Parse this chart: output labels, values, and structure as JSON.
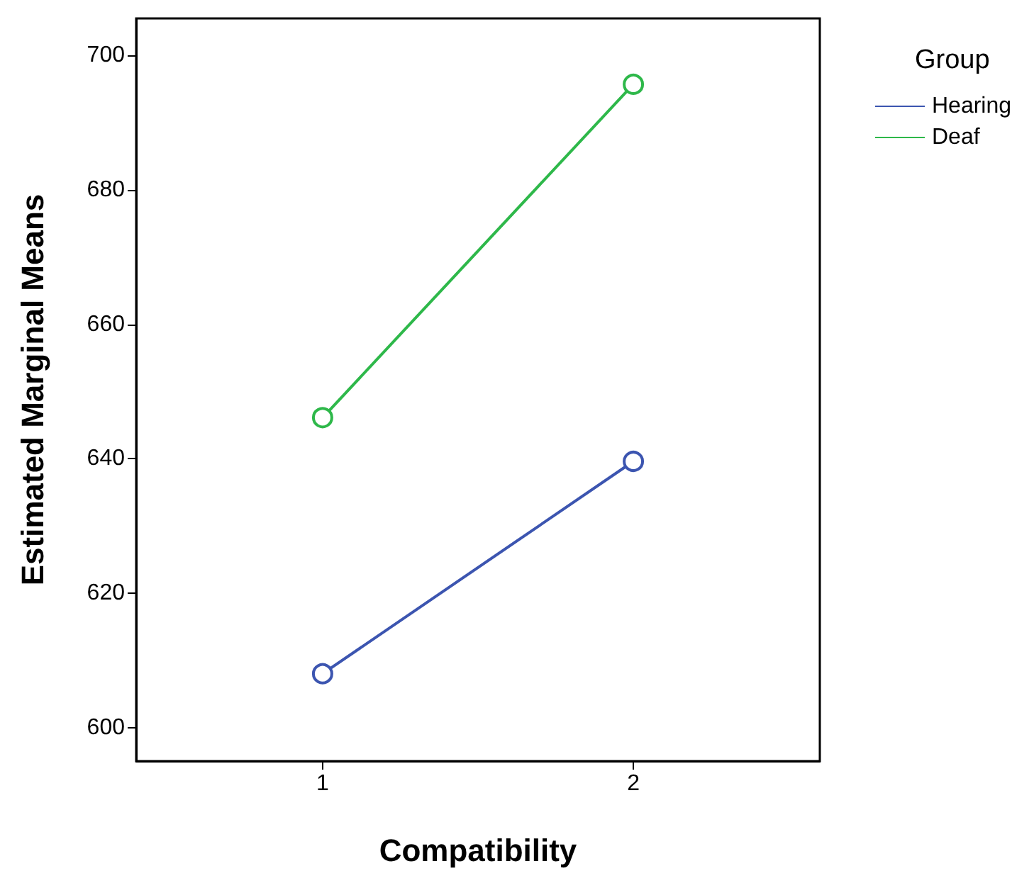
{
  "chart_data": {
    "type": "line",
    "xlabel": "Compatibility",
    "ylabel": "Estimated Marginal Means",
    "legend_title": "Group",
    "x": [
      1,
      2
    ],
    "xlim": [
      0.4,
      2.6
    ],
    "xticks": [
      1,
      2
    ],
    "ylim": [
      595,
      705.5
    ],
    "yticks": [
      600,
      620,
      640,
      660,
      680,
      700
    ],
    "series": [
      {
        "name": "Hearing",
        "color": "#3c55b0",
        "values": [
          608.0,
          639.6
        ]
      },
      {
        "name": "Deaf",
        "color": "#2eb84a",
        "values": [
          646.1,
          695.7
        ]
      }
    ],
    "marker": "circle",
    "line_style": "solid",
    "grid": false,
    "legend": "top right"
  }
}
